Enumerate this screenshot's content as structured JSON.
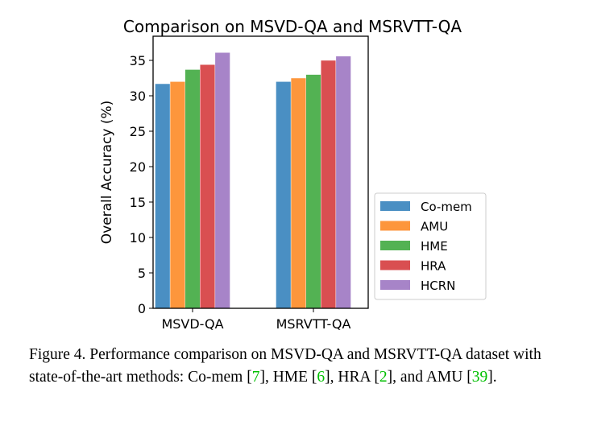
{
  "chart_data": {
    "type": "bar",
    "title": "Comparison on MSVD-QA and MSRVTT-QA",
    "xlabel": "",
    "ylabel": "Overall Accuracy (%)",
    "ylim": [
      0,
      37.7
    ],
    "yticks": [
      0,
      5,
      10,
      15,
      20,
      25,
      30,
      35
    ],
    "categories": [
      "MSVD-QA",
      "MSRVTT-QA"
    ],
    "legend_position": "right",
    "grid": false,
    "series": [
      {
        "name": "Co-mem",
        "color": "#4a8fc3",
        "values": [
          31.7,
          32.0
        ]
      },
      {
        "name": "AMU",
        "color": "#fd963c",
        "values": [
          32.0,
          32.5
        ]
      },
      {
        "name": "HME",
        "color": "#53b253",
        "values": [
          33.7,
          33.0
        ]
      },
      {
        "name": "HRA",
        "color": "#d94f51",
        "values": [
          34.4,
          35.0
        ]
      },
      {
        "name": "HCRN",
        "color": "#a784c8",
        "values": [
          36.1,
          35.6
        ]
      }
    ]
  },
  "caption": {
    "text_1": "Figure 4. Performance comparison on MSVD-QA and MSRVTT-QA dataset with state-of-the-art methods: Co-mem [",
    "ref_1": "7",
    "text_2": "], HME [",
    "ref_2": "6",
    "text_3": "], HRA [",
    "ref_3": "2",
    "text_4": "], and AMU [",
    "ref_4": "39",
    "text_5": "]."
  }
}
